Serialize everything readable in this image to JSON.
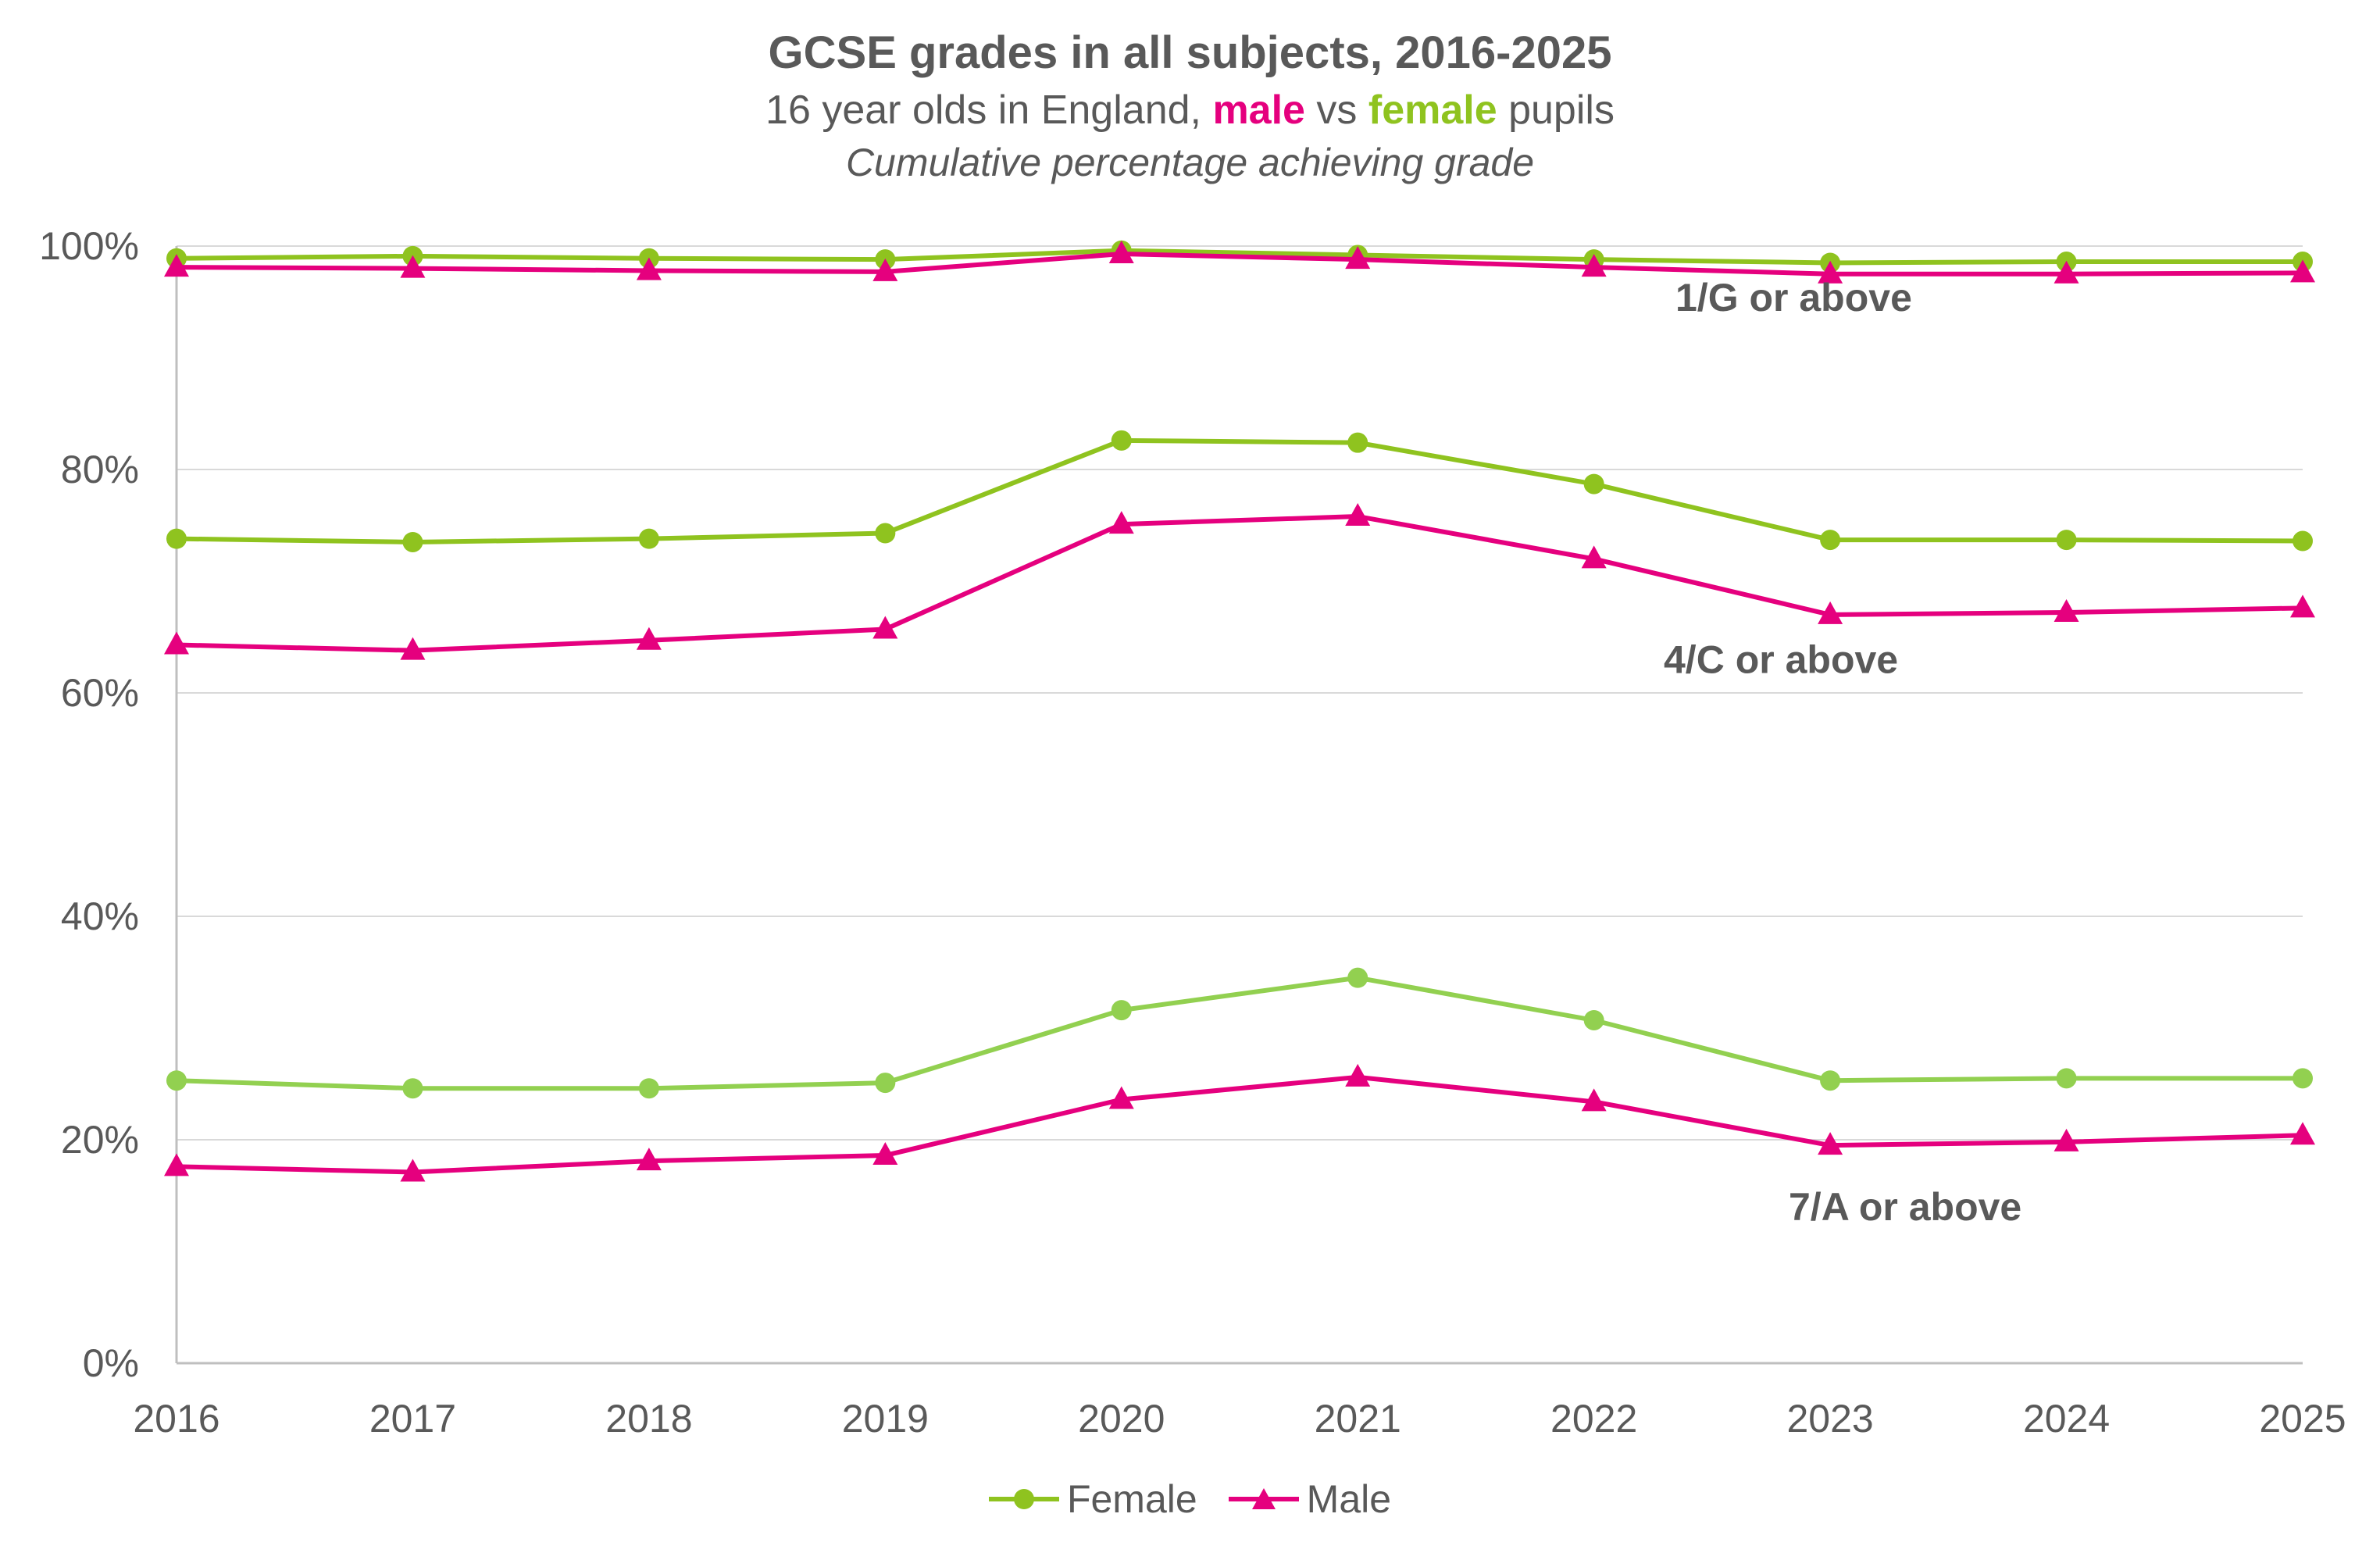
{
  "title": "GCSE grades in all subjects, 2016-2025",
  "subtitle_prefix": "16 year olds in England, ",
  "subtitle_male": "male",
  "subtitle_vs": " vs ",
  "subtitle_female": "female",
  "subtitle_suffix": " pupils",
  "subtitle2": "Cumulative percentage achieving grade",
  "colors": {
    "female": "#8fc31f",
    "female_light": "#92d050",
    "male": "#e5007e",
    "grid": "#d9d9d9",
    "axis": "#bfbfbf",
    "text": "#595959"
  },
  "legend": {
    "female": "Female",
    "male": "Male"
  },
  "chart_data": {
    "type": "line",
    "x": [
      "2016",
      "2017",
      "2018",
      "2019",
      "2020",
      "2021",
      "2022",
      "2023",
      "2024",
      "2025"
    ],
    "ylim": [
      0,
      100
    ],
    "y_ticks": [
      "0%",
      "20%",
      "40%",
      "60%",
      "80%",
      "100%"
    ],
    "grid": true,
    "legend_position": "bottom",
    "annotations": [
      "1/G or above",
      "4/C or above",
      "7/A or above"
    ],
    "series": [
      {
        "name": "Female",
        "group": "1/G or above",
        "marker": "circle",
        "values": [
          98.9,
          99.1,
          98.9,
          98.8,
          99.6,
          99.2,
          98.8,
          98.5,
          98.6,
          98.6
        ]
      },
      {
        "name": "Male",
        "group": "1/G or above",
        "marker": "triangle",
        "values": [
          98.1,
          98.0,
          97.8,
          97.7,
          99.3,
          98.8,
          98.1,
          97.5,
          97.5,
          97.6
        ]
      },
      {
        "name": "Female",
        "group": "4/C or above",
        "marker": "circle",
        "values": [
          73.8,
          73.5,
          73.8,
          74.3,
          82.6,
          82.4,
          78.7,
          73.7,
          73.7,
          73.6
        ]
      },
      {
        "name": "Male",
        "group": "4/C or above",
        "marker": "triangle",
        "values": [
          64.3,
          63.8,
          64.7,
          65.7,
          75.1,
          75.8,
          72.0,
          67.0,
          67.2,
          67.6
        ]
      },
      {
        "name": "Female",
        "group": "7/A or above",
        "marker": "circle",
        "values": [
          25.3,
          24.6,
          24.6,
          25.1,
          31.6,
          34.5,
          30.7,
          25.3,
          25.5,
          25.5
        ]
      },
      {
        "name": "Male",
        "group": "7/A or above",
        "marker": "triangle",
        "values": [
          17.6,
          17.1,
          18.1,
          18.6,
          23.6,
          25.6,
          23.4,
          19.5,
          19.8,
          20.4
        ]
      }
    ]
  }
}
